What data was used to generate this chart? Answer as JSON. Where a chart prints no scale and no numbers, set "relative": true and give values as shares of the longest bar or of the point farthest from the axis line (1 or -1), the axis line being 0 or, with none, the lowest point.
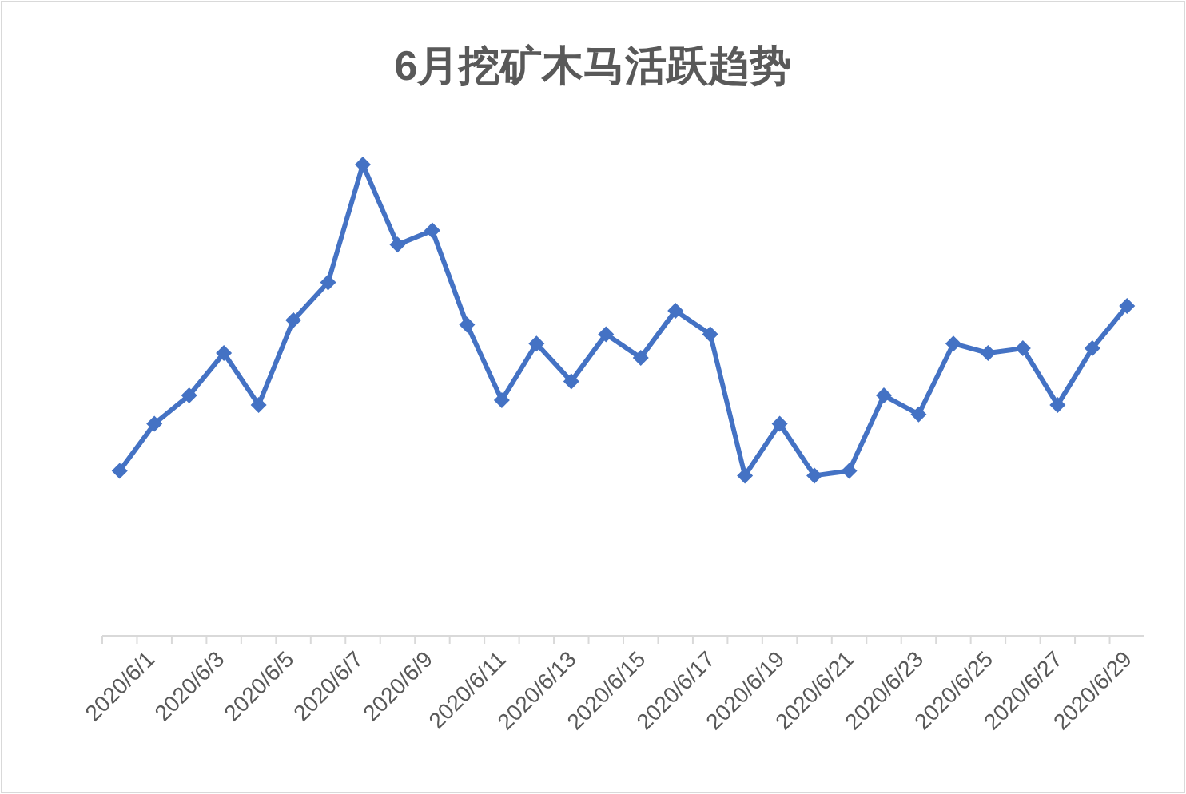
{
  "chart_data": {
    "type": "line",
    "title": "6月挖矿木马活跃趋势",
    "relative": true,
    "marker": "diamond",
    "categories": [
      "2020/6/1",
      null,
      "2020/6/3",
      null,
      "2020/6/5",
      null,
      "2020/6/7",
      null,
      "2020/6/9",
      null,
      "2020/6/11",
      null,
      "2020/6/13",
      null,
      "2020/6/15",
      null,
      "2020/6/17",
      null,
      "2020/6/19",
      null,
      "2020/6/21",
      null,
      "2020/6/23",
      null,
      "2020/6/25",
      null,
      "2020/6/27",
      null,
      "2020/6/29",
      null
    ],
    "series": [
      {
        "color": "#4472c4",
        "values": [
          0.35,
          0.45,
          0.51,
          0.6,
          0.49,
          0.67,
          0.75,
          1,
          0.83,
          0.86,
          0.66,
          0.5,
          0.62,
          0.54,
          0.64,
          0.59,
          0.69,
          0.64,
          0.34,
          0.45,
          0.34,
          0.35,
          0.51,
          0.47,
          0.62,
          0.6,
          0.61,
          0.49,
          0.61,
          0.7
        ]
      }
    ]
  }
}
